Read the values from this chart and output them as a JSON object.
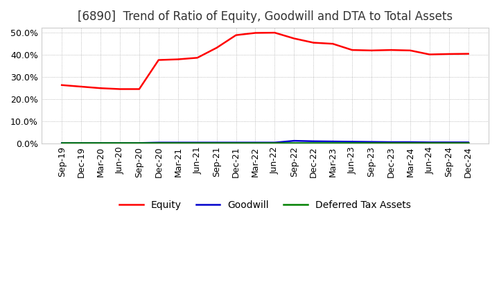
{
  "title": "[6890]  Trend of Ratio of Equity, Goodwill and DTA to Total Assets",
  "title_fontsize": 12,
  "background_color": "#ffffff",
  "plot_bg_color": "#ffffff",
  "ylim": [
    0.0,
    0.52
  ],
  "yticks": [
    0.0,
    0.1,
    0.2,
    0.3,
    0.4,
    0.5
  ],
  "x_labels": [
    "Sep-19",
    "Dec-19",
    "Mar-20",
    "Jun-20",
    "Sep-20",
    "Dec-20",
    "Mar-21",
    "Jun-21",
    "Sep-21",
    "Dec-21",
    "Mar-22",
    "Jun-22",
    "Sep-22",
    "Dec-22",
    "Mar-23",
    "Jun-23",
    "Sep-23",
    "Dec-23",
    "Mar-24",
    "Jun-24",
    "Sep-24",
    "Dec-24"
  ],
  "equity": [
    0.262,
    0.255,
    0.248,
    0.244,
    0.244,
    0.375,
    0.378,
    0.385,
    0.43,
    0.487,
    0.497,
    0.498,
    0.472,
    0.453,
    0.448,
    0.42,
    0.418,
    0.42,
    0.418,
    0.4,
    0.402,
    0.403
  ],
  "goodwill": [
    0.001,
    0.001,
    0.001,
    0.001,
    0.001,
    0.003,
    0.003,
    0.003,
    0.003,
    0.003,
    0.003,
    0.003,
    0.011,
    0.009,
    0.008,
    0.007,
    0.006,
    0.005,
    0.005,
    0.004,
    0.004,
    0.004
  ],
  "dta": [
    0.002,
    0.002,
    0.002,
    0.002,
    0.002,
    0.002,
    0.002,
    0.002,
    0.002,
    0.002,
    0.002,
    0.002,
    0.002,
    0.002,
    0.002,
    0.002,
    0.002,
    0.002,
    0.002,
    0.002,
    0.002,
    0.002
  ],
  "equity_color": "#ff0000",
  "goodwill_color": "#0000cc",
  "dta_color": "#008000",
  "legend_labels": [
    "Equity",
    "Goodwill",
    "Deferred Tax Assets"
  ],
  "grid_color": "#aaaaaa",
  "tick_label_fontsize": 9
}
